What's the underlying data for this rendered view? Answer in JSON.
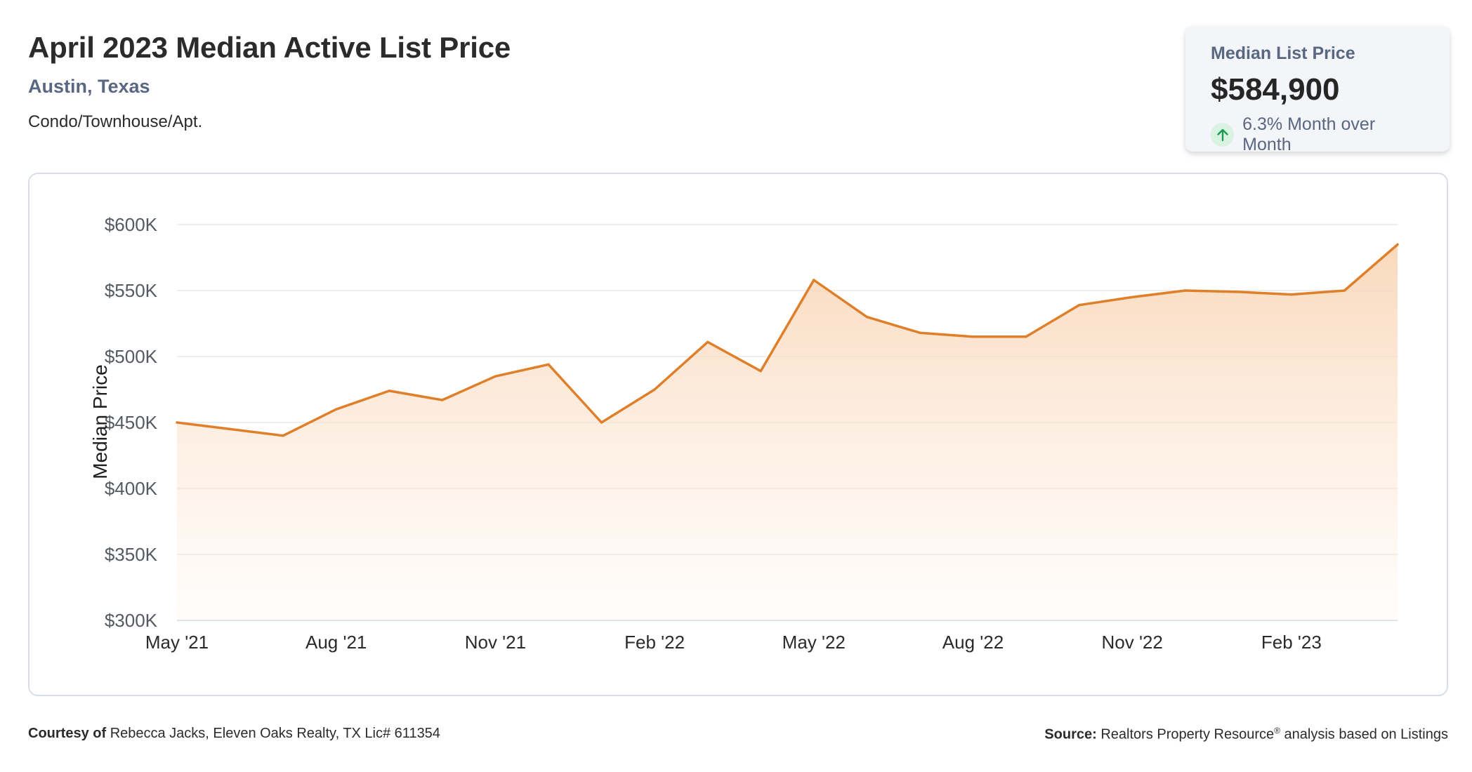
{
  "header": {
    "title": "April 2023 Median Active List Price",
    "location": "Austin, Texas",
    "property_type": "Condo/Townhouse/Apt."
  },
  "stat_card": {
    "label": "Median List Price",
    "value": "$584,900",
    "change": "6.3% Month over Month",
    "direction_icon": "arrow-up-icon",
    "up_color": "#1e9a4f"
  },
  "footer": {
    "courtesy_label": "Courtesy of",
    "courtesy_text": "Rebecca Jacks, Eleven Oaks Realty, TX Lic# 611354",
    "source_label": "Source:",
    "source_text_1": "Realtors Property Resource",
    "source_mark": "®",
    "source_text_2": "analysis based on Listings"
  },
  "chart_data": {
    "type": "area",
    "title": "",
    "ylabel": "Median Price",
    "xlabel": "",
    "ylim": [
      300000,
      600000
    ],
    "yticks": [
      300000,
      350000,
      400000,
      450000,
      500000,
      550000,
      600000
    ],
    "ytick_labels": [
      "$300K",
      "$350K",
      "$400K",
      "$450K",
      "$500K",
      "$550K",
      "$600K"
    ],
    "xtick_labels": [
      "May '21",
      "Aug '21",
      "Nov '21",
      "Feb '22",
      "May '22",
      "Aug '22",
      "Nov '22",
      "Feb '23"
    ],
    "categories": [
      "May '21",
      "Jun '21",
      "Jul '21",
      "Aug '21",
      "Sep '21",
      "Oct '21",
      "Nov '21",
      "Dec '21",
      "Jan '22",
      "Feb '22",
      "Mar '22",
      "Apr '22",
      "May '22",
      "Jun '22",
      "Jul '22",
      "Aug '22",
      "Sep '22",
      "Oct '22",
      "Nov '22",
      "Dec '22",
      "Jan '23",
      "Feb '23",
      "Mar '23",
      "Apr '23"
    ],
    "values": [
      450000,
      445000,
      440000,
      460000,
      474000,
      467000,
      485000,
      494000,
      450000,
      475000,
      511000,
      489000,
      558000,
      530000,
      518000,
      515000,
      515000,
      539000,
      545000,
      550000,
      549000,
      547000,
      550000,
      584900
    ],
    "grid": true,
    "line_color": "#e07f2a",
    "fill_color": "#fbe0c8"
  }
}
